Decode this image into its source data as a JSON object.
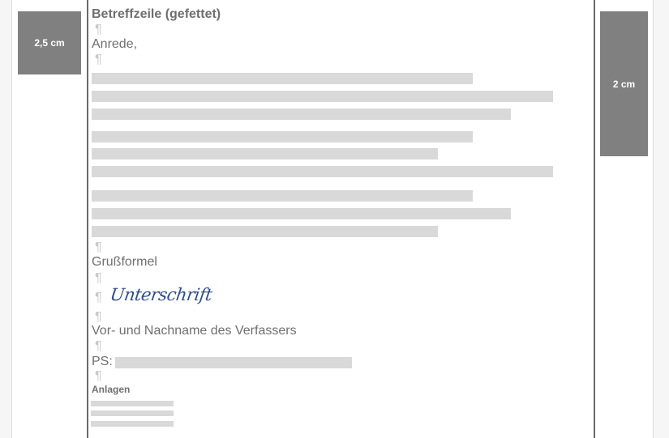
{
  "margins": {
    "left_label": "2,5 cm",
    "right_label": "2 cm"
  },
  "letter": {
    "subject": "Betreffzeile (gefettet)",
    "salutation": "Anrede,",
    "closing": "Grußformel",
    "signature": "Unterschrift",
    "author": "Vor- und Nachname des Verfassers",
    "ps_label": "PS:",
    "attachments": "Anlagen",
    "pilcrow": "¶"
  },
  "colors": {
    "margin_box": "#808080",
    "signature": "#2f4d8c",
    "placeholder": "#d9d9d9"
  }
}
